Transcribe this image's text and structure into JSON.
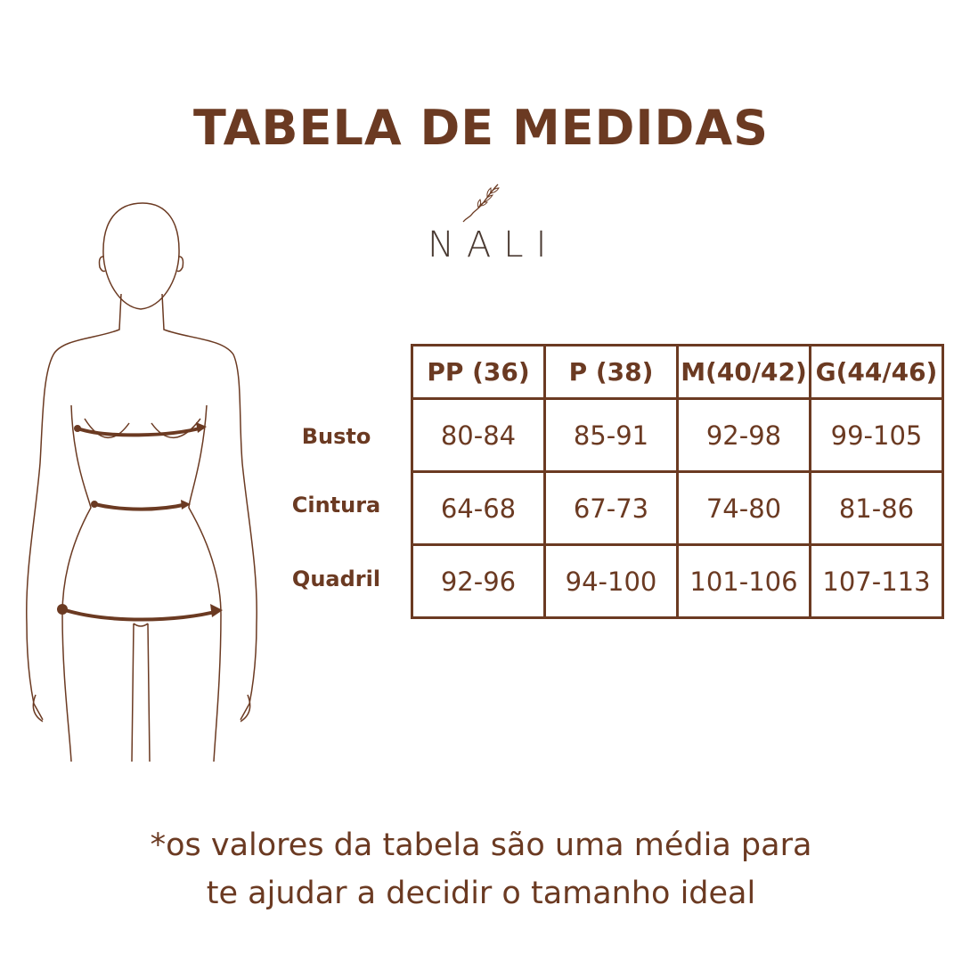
{
  "title": "TABELA DE MEDIDAS",
  "brand": {
    "name": "NALI",
    "logo_icon": "leaf-branch-icon"
  },
  "colors": {
    "primary": "#6b3a22",
    "background": "#ffffff"
  },
  "figure": {
    "icon": "body-silhouette-with-measurement-arrows"
  },
  "table": {
    "headers": [
      "PP (36)",
      "P (38)",
      "M(40/42)",
      "G(44/46)"
    ],
    "rows": [
      {
        "label": "Busto",
        "values": [
          "80-84",
          "85-91",
          "92-98",
          "99-105"
        ]
      },
      {
        "label": "Cintura",
        "values": [
          "64-68",
          "67-73",
          "74-80",
          "81-86"
        ]
      },
      {
        "label": "Quadril",
        "values": [
          "92-96",
          "94-100",
          "101-106",
          "107-113"
        ]
      }
    ]
  },
  "note": {
    "line1": "*os valores da tabela são uma média para",
    "line2": "te ajudar a decidir o tamanho ideal"
  }
}
